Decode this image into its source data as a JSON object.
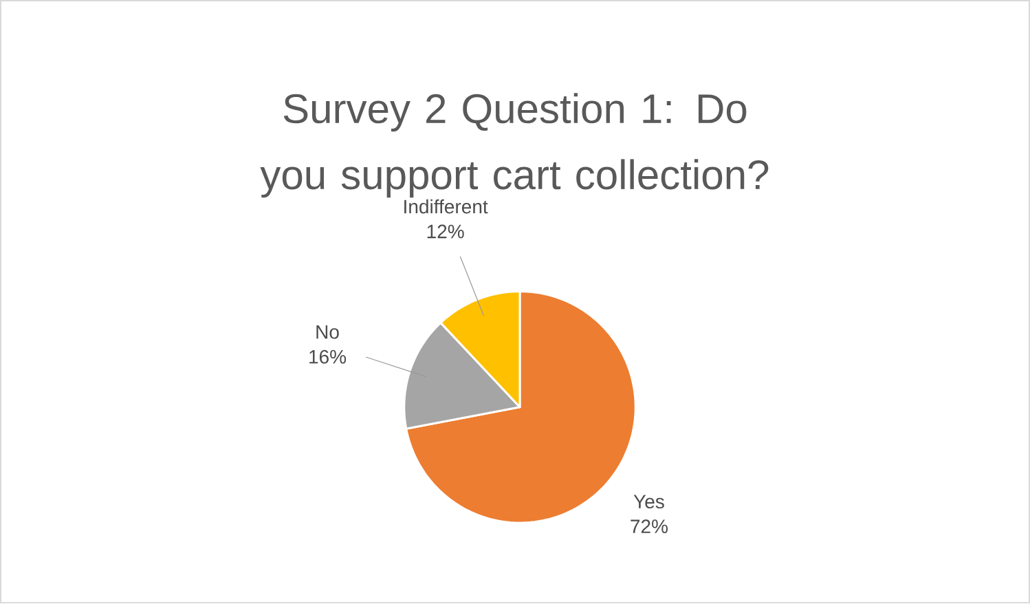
{
  "chart_data": {
    "type": "pie",
    "title": "Survey 2 Question 1: Do you support cart collection?",
    "categories": [
      "Yes",
      "No",
      "Indifferent"
    ],
    "values": [
      72,
      16,
      12
    ],
    "colors": [
      "#ed7d31",
      "#a5a5a5",
      "#ffc000"
    ],
    "value_labels": [
      "72%",
      "16%",
      "12%"
    ]
  }
}
